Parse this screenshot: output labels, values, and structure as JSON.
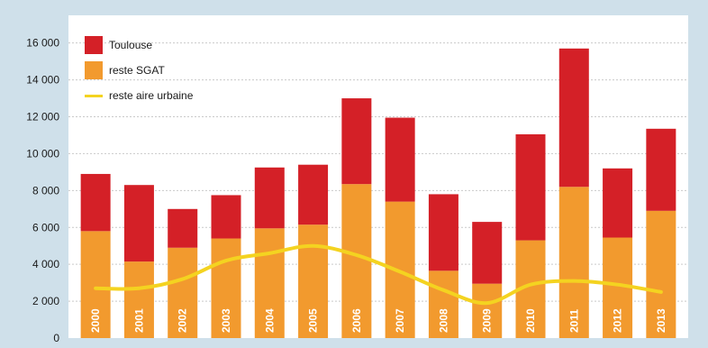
{
  "chart_data": {
    "type": "bar",
    "title": "",
    "xlabel": "",
    "ylabel": "",
    "ylim": [
      0,
      17500
    ],
    "grid": true,
    "legend_position": "top-left",
    "stacked": true,
    "categories": [
      "2000",
      "2001",
      "2002",
      "2003",
      "2004",
      "2005",
      "2006",
      "2007",
      "2008",
      "2009",
      "2010",
      "2011",
      "2012",
      "2013"
    ],
    "y_ticks": [
      0,
      2000,
      4000,
      6000,
      8000,
      10000,
      12000,
      14000,
      16000
    ],
    "y_tick_labels": [
      "0",
      "2 000",
      "4 000",
      "6 000",
      "8 000",
      "10 000",
      "12 000",
      "14 000",
      "16 000"
    ],
    "series": [
      {
        "name": "reste SGAT",
        "kind": "bar",
        "color": "#f29a2e",
        "values": [
          5800,
          4150,
          4900,
          5400,
          5950,
          6150,
          8350,
          7400,
          3650,
          2950,
          5300,
          8200,
          5450,
          6900
        ]
      },
      {
        "name": "Toulouse",
        "kind": "bar",
        "color": "#d42027",
        "values": [
          3100,
          4150,
          2100,
          2350,
          3300,
          3250,
          4650,
          4550,
          4150,
          3350,
          5750,
          7500,
          3750,
          4450
        ]
      },
      {
        "name": "reste aire urbaine",
        "kind": "line",
        "color": "#f4d320",
        "values": [
          2700,
          2700,
          3200,
          4200,
          4600,
          5000,
          4500,
          3600,
          2600,
          1900,
          2900,
          3100,
          2900,
          2500
        ]
      }
    ],
    "legend": [
      {
        "label": "Toulouse",
        "color": "#d42027",
        "kind": "bar"
      },
      {
        "label": "reste SGAT",
        "color": "#f29a2e",
        "kind": "bar"
      },
      {
        "label": "reste aire urbaine",
        "color": "#f4d320",
        "kind": "line"
      }
    ]
  }
}
